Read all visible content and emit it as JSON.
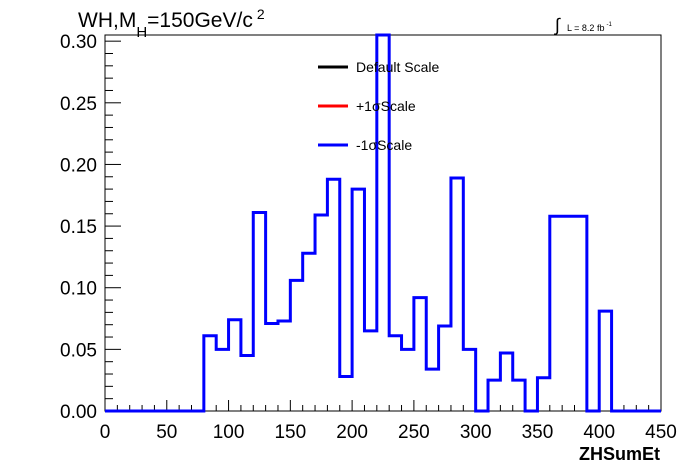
{
  "chart_data": {
    "type": "histogram",
    "title_parts": {
      "main": "WH,M",
      "sub": "H",
      "rest": "=150GeV/c",
      "sup": "2"
    },
    "lumi_parts": {
      "integral": "∫",
      "text": "L = 8.2 fb",
      "sup": "-1"
    },
    "xlabel": "ZHSumEt",
    "ylabel": "",
    "xlim": [
      0,
      450
    ],
    "ylim": [
      0,
      0.305
    ],
    "x_ticks": [
      "0",
      "50",
      "100",
      "150",
      "200",
      "250",
      "300",
      "350",
      "400",
      "450"
    ],
    "y_ticks": [
      "0.00",
      "0.05",
      "0.10",
      "0.15",
      "0.20",
      "0.25",
      "0.30"
    ],
    "legend_position": "top-center",
    "series": [
      {
        "name": "Default Scale",
        "color": "#000000",
        "visible_in_plot": false
      },
      {
        "name": "+1σScale",
        "color": "#ff0000",
        "visible_in_plot": false
      },
      {
        "name": "-1σScale",
        "color": "#0000ff",
        "visible_in_plot": true
      }
    ],
    "bin_edges": [
      0,
      80,
      90,
      100,
      110,
      120,
      130,
      140,
      150,
      160,
      170,
      180,
      190,
      200,
      210,
      220,
      230,
      240,
      250,
      260,
      270,
      280,
      290,
      300,
      310,
      320,
      330,
      340,
      350,
      360,
      390,
      400,
      410,
      450
    ],
    "values": [
      0.0,
      0.061,
      0.05,
      0.074,
      0.045,
      0.161,
      0.071,
      0.073,
      0.106,
      0.128,
      0.159,
      0.188,
      0.028,
      0.18,
      0.065,
      0.305,
      0.061,
      0.05,
      0.092,
      0.034,
      0.069,
      0.189,
      0.05,
      0.0,
      0.025,
      0.047,
      0.025,
      0.0,
      0.027,
      0.158,
      0.0,
      0.081,
      0.0
    ]
  }
}
